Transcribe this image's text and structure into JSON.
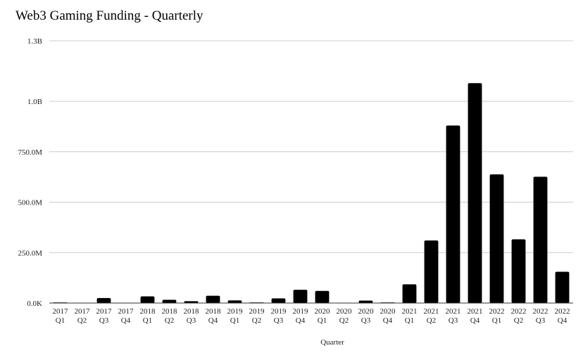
{
  "chart_data": {
    "type": "bar",
    "title": "Web3 Gaming Funding - Quarterly",
    "xlabel": "Quarter",
    "ylabel": "",
    "ylim": [
      0,
      1300000000
    ],
    "yticks": [
      {
        "value": 0,
        "label": "0.0K"
      },
      {
        "value": 250000000,
        "label": "250.0M"
      },
      {
        "value": 500000000,
        "label": "500.0M"
      },
      {
        "value": 750000000,
        "label": "750.0M"
      },
      {
        "value": 1000000000,
        "label": "1.0B"
      },
      {
        "value": 1300000000,
        "label": "1.3B"
      }
    ],
    "grid": true,
    "legend": "none",
    "bar_color": "#000000",
    "grid_color": "#cccccc",
    "categories": [
      [
        "2017",
        "Q1"
      ],
      [
        "2017",
        "Q2"
      ],
      [
        "2017",
        "Q3"
      ],
      [
        "2017",
        "Q4"
      ],
      [
        "2018",
        "Q1"
      ],
      [
        "2018",
        "Q2"
      ],
      [
        "2018",
        "Q3"
      ],
      [
        "2018",
        "Q4"
      ],
      [
        "2019",
        "Q1"
      ],
      [
        "2019",
        "Q2"
      ],
      [
        "2019",
        "Q3"
      ],
      [
        "2019",
        "Q4"
      ],
      [
        "2020",
        "Q1"
      ],
      [
        "2020",
        "Q2"
      ],
      [
        "2020",
        "Q3"
      ],
      [
        "2020",
        "Q4"
      ],
      [
        "2021",
        "Q1"
      ],
      [
        "2021",
        "Q2"
      ],
      [
        "2021",
        "Q3"
      ],
      [
        "2021",
        "Q4"
      ],
      [
        "2022",
        "Q1"
      ],
      [
        "2022",
        "Q2"
      ],
      [
        "2022",
        "Q3"
      ],
      [
        "2022",
        "Q4"
      ]
    ],
    "values": [
      3000000,
      0,
      25000000,
      0,
      33000000,
      16000000,
      9000000,
      36000000,
      13000000,
      3000000,
      23000000,
      66000000,
      60000000,
      0,
      12000000,
      3000000,
      93000000,
      310000000,
      880000000,
      1090000000,
      638000000,
      316000000,
      626000000,
      155000000
    ]
  }
}
